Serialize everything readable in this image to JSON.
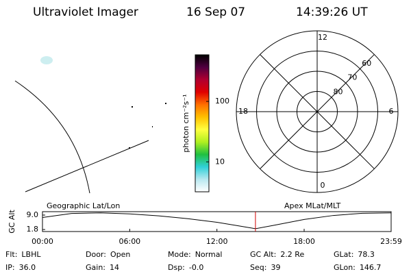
{
  "header": {
    "title": "Ultraviolet Imager",
    "date": "16 Sep 07",
    "time": "14:39:26 UT"
  },
  "geo_label": "Geographic Lat/Lon",
  "apex_label": "Apex MLat/MLT",
  "colorbar": {
    "label": "photon cm⁻²s⁻¹",
    "scale": "log",
    "lim": [
      3.2,
      590
    ],
    "ticks": [
      10,
      100
    ],
    "colormap": [
      "#ffffff",
      "#b8e8f0",
      "#30d0d8",
      "#20c040",
      "#b0f020",
      "#ffff40",
      "#ffc000",
      "#ff7000",
      "#e00000",
      "#b00030",
      "#500040",
      "#000000"
    ]
  },
  "polar": {
    "lat_lim": [
      90,
      50
    ],
    "lat_ticks": [
      60,
      70,
      80
    ],
    "hour_ticks": [
      0,
      6,
      12,
      18
    ]
  },
  "altitude_plot": {
    "ylabel": "GC Alt",
    "xlim": [
      0,
      1439
    ],
    "ylim": [
      0.8,
      10.7
    ],
    "yticks": [
      {
        "value": 9,
        "label": "9.0"
      },
      1.8
    ],
    "xticks": [
      {
        "value": 0,
        "label": "00:00"
      },
      {
        "value": 360,
        "label": "06:00"
      },
      {
        "value": 720,
        "label": "12:00"
      },
      {
        "value": 1080,
        "label": "18:00"
      },
      {
        "value": 1439,
        "label": "23:59"
      }
    ],
    "x": [
      0,
      120,
      240,
      360,
      480,
      600,
      720,
      810,
      879,
      950,
      1080,
      1200,
      1320,
      1439
    ],
    "values": [
      7.8,
      9.8,
      10.1,
      9.6,
      8.6,
      7.2,
      5.4,
      3.6,
      2.2,
      3.8,
      6.8,
      8.8,
      9.9,
      10.1
    ],
    "current_time": 879,
    "current_color": "#d00000"
  },
  "info": [
    [
      "Flt:",
      "LBHL"
    ],
    [
      "Door:",
      "Open"
    ],
    [
      "Mode:",
      "Normal"
    ],
    [
      "GC Alt:",
      "2.2 Re"
    ],
    [
      "GLat:",
      "78.3"
    ],
    [
      "IP:",
      "36.0"
    ],
    [
      "Gain:",
      "14"
    ],
    [
      "Dsp:",
      "-0.0"
    ],
    [
      "Seq:",
      "39"
    ],
    [
      "GLon:",
      "146.7"
    ]
  ]
}
